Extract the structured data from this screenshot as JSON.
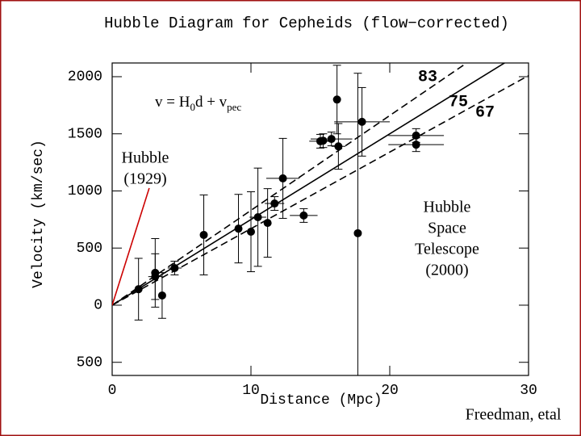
{
  "chart_data": {
    "type": "scatter",
    "title": "Hubble Diagram for Cepheids (flow−corrected)",
    "xlabel": "Distance (Mpc)",
    "ylabel": "Velocity (km/sec)",
    "xlim": [
      0,
      30
    ],
    "ylim": [
      -615,
      2120
    ],
    "xticks": [
      0,
      10,
      20,
      30
    ],
    "yticks": [
      2000,
      1500,
      1000,
      500,
      0,
      {
        "value": -500,
        "label": "500"
      }
    ],
    "series": [
      {
        "color": "#000000",
        "x": [
          1.9,
          3.1,
          3.1,
          3.6,
          4.5,
          6.6,
          9.1,
          10.0,
          10.5,
          11.2,
          11.7,
          12.3,
          13.8,
          15.0,
          15.2,
          15.8,
          16.2,
          16.3,
          18.0,
          17.7,
          21.9,
          21.9
        ],
        "values": [
          140,
          283,
          250,
          85,
          325,
          615,
          670,
          643,
          770,
          720,
          890,
          1110,
          785,
          1435,
          1440,
          1455,
          1800,
          1390,
          1605,
          630,
          1485,
          1405
        ],
        "xerr": [
          0,
          0,
          0.5,
          0,
          0.5,
          0,
          0,
          0,
          0.6,
          0,
          0.7,
          1.2,
          1.0,
          0.8,
          0.5,
          1.5,
          0,
          0.5,
          2.0,
          0,
          2.0,
          2.0
        ],
        "yerr": [
          270,
          300,
          200,
          200,
          60,
          350,
          300,
          350,
          430,
          300,
          60,
          350,
          60,
          60,
          60,
          60,
          300,
          200,
          300,
          1400,
          60,
          60
        ]
      }
    ],
    "fits": [
      {
        "name": "83",
        "style": "dashed",
        "color": "#000000",
        "x": [
          0,
          30
        ],
        "values": [
          0,
          2490
        ]
      },
      {
        "name": "75",
        "style": "solid",
        "color": "#000000",
        "x": [
          0,
          30
        ],
        "values": [
          0,
          2250
        ]
      },
      {
        "name": "67",
        "style": "dashed",
        "color": "#000000",
        "x": [
          0,
          30
        ],
        "values": [
          0,
          2010
        ]
      },
      {
        "style": "solid",
        "color": "#cc0000",
        "x": [
          0,
          2.67
        ],
        "values": [
          0,
          1025
        ]
      }
    ],
    "equation": [
      "v = H",
      "0",
      "d + v",
      "pec"
    ],
    "annotations": [
      {
        "lines": [
          "Hubble",
          "(1929)"
        ]
      },
      {
        "lines": [
          "Hubble",
          "Space",
          "Telescope",
          "(2000)"
        ]
      },
      {
        "lines": [
          "Freedman, etal"
        ]
      }
    ]
  }
}
